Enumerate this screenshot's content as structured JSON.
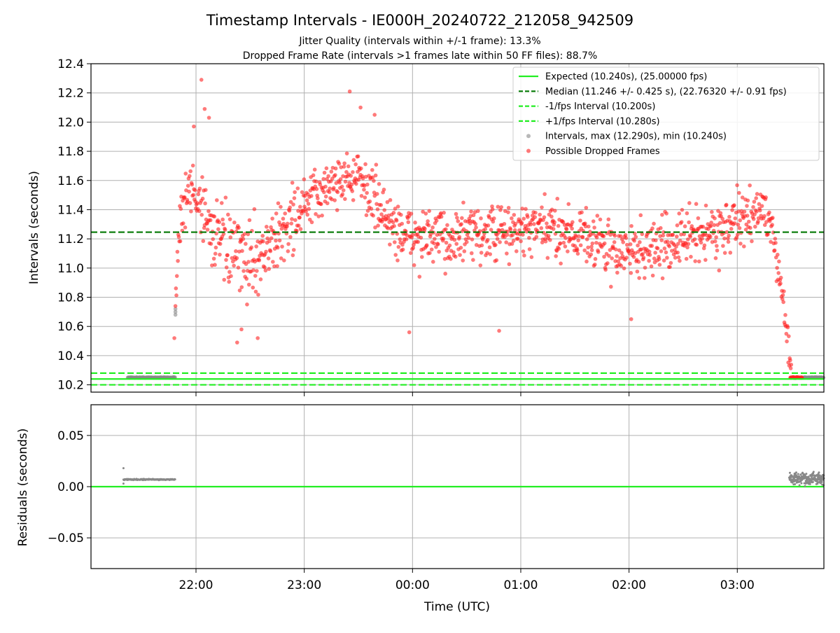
{
  "title": "Timestamp Intervals - IE000H_20240722_212058_942509",
  "subtitle_1": "Jitter Quality (intervals within +/-1 frame): 13.3%",
  "subtitle_2": "Dropped Frame Rate (intervals >1 frames late within 50 FF files): 88.7%",
  "colors": {
    "expected": "#22ee22",
    "median": "#007700",
    "fps_interval": "#22ee22",
    "intervals": "#888888",
    "dropped": "#ff2222",
    "grid": "#b0b0b0"
  },
  "chart_data": [
    {
      "type": "scatter",
      "ylabel": "Intervals (seconds)",
      "ylim": [
        10.15,
        12.4
      ],
      "xlim_hours": [
        21.03,
        27.8
      ],
      "y_ticks": [
        "10.2",
        "10.4",
        "10.6",
        "10.8",
        "11.0",
        "11.2",
        "11.4",
        "11.6",
        "11.8",
        "12.0",
        "12.2",
        "12.4"
      ],
      "grid": true,
      "legend_position": "top-right",
      "hlines": [
        {
          "name": "Expected (10.240s), (25.00000 fps)",
          "y": 10.24,
          "style": "solid",
          "color": "#22ee22"
        },
        {
          "name": "Median (11.246 +/- 0.425 s), (22.76320 +/- 0.91 fps)",
          "y": 11.246,
          "style": "dashed",
          "color": "#007700"
        },
        {
          "name": "-1/fps Interval (10.200s)",
          "y": 10.2,
          "style": "dashed",
          "color": "#22ee22"
        },
        {
          "name": "+1/fps Interval (10.280s)",
          "y": 10.28,
          "style": "dashed",
          "color": "#22ee22"
        }
      ],
      "scatter_series": [
        {
          "name": "Intervals, max (12.290s), min (10.240s)",
          "color": "#888888"
        },
        {
          "name": "Possible Dropped Frames",
          "color": "#ff2222"
        }
      ],
      "normal_segments": [
        {
          "x_start": 21.37,
          "x_end": 21.81,
          "y": 10.25
        },
        {
          "x_start": 27.58,
          "x_end": 27.8,
          "y": 10.25
        }
      ],
      "normal_points": [
        {
          "x": 21.81,
          "y": 10.72
        },
        {
          "x": 21.81,
          "y": 10.7
        },
        {
          "x": 21.81,
          "y": 10.68
        }
      ],
      "dropped_envelope": [
        {
          "x": 21.81,
          "median": 10.85,
          "spread": 0.2
        },
        {
          "x": 21.85,
          "median": 11.35,
          "spread": 0.3
        },
        {
          "x": 21.95,
          "median": 11.55,
          "spread": 0.3
        },
        {
          "x": 22.05,
          "median": 11.45,
          "spread": 0.3
        },
        {
          "x": 22.15,
          "median": 11.25,
          "spread": 0.3
        },
        {
          "x": 22.3,
          "median": 11.12,
          "spread": 0.32
        },
        {
          "x": 22.45,
          "median": 11.05,
          "spread": 0.35
        },
        {
          "x": 22.6,
          "median": 11.1,
          "spread": 0.3
        },
        {
          "x": 22.75,
          "median": 11.2,
          "spread": 0.28
        },
        {
          "x": 22.9,
          "median": 11.35,
          "spread": 0.3
        },
        {
          "x": 23.05,
          "median": 11.45,
          "spread": 0.25
        },
        {
          "x": 23.2,
          "median": 11.55,
          "spread": 0.22
        },
        {
          "x": 23.35,
          "median": 11.62,
          "spread": 0.22
        },
        {
          "x": 23.5,
          "median": 11.62,
          "spread": 0.22
        },
        {
          "x": 23.65,
          "median": 11.48,
          "spread": 0.25
        },
        {
          "x": 23.8,
          "median": 11.3,
          "spread": 0.25
        },
        {
          "x": 23.95,
          "median": 11.22,
          "spread": 0.25
        },
        {
          "x": 24.2,
          "median": 11.2,
          "spread": 0.25
        },
        {
          "x": 24.5,
          "median": 11.22,
          "spread": 0.25
        },
        {
          "x": 24.8,
          "median": 11.24,
          "spread": 0.25
        },
        {
          "x": 25.1,
          "median": 11.26,
          "spread": 0.25
        },
        {
          "x": 25.4,
          "median": 11.26,
          "spread": 0.25
        },
        {
          "x": 25.7,
          "median": 11.2,
          "spread": 0.25
        },
        {
          "x": 25.85,
          "median": 11.1,
          "spread": 0.25
        },
        {
          "x": 26.05,
          "median": 11.12,
          "spread": 0.25
        },
        {
          "x": 26.3,
          "median": 11.15,
          "spread": 0.25
        },
        {
          "x": 26.6,
          "median": 11.22,
          "spread": 0.25
        },
        {
          "x": 26.9,
          "median": 11.28,
          "spread": 0.25
        },
        {
          "x": 27.1,
          "median": 11.35,
          "spread": 0.22
        },
        {
          "x": 27.25,
          "median": 11.42,
          "spread": 0.2
        },
        {
          "x": 27.33,
          "median": 11.2,
          "spread": 0.15
        },
        {
          "x": 27.4,
          "median": 10.9,
          "spread": 0.15
        },
        {
          "x": 27.47,
          "median": 10.5,
          "spread": 0.15
        },
        {
          "x": 27.5,
          "median": 10.3,
          "spread": 0.06
        }
      ],
      "dropped_cluster": {
        "x_start": 27.49,
        "x_end": 27.6,
        "y": 10.25
      },
      "dropped_outliers": [
        {
          "x": 22.05,
          "y": 12.29
        },
        {
          "x": 22.08,
          "y": 12.09
        },
        {
          "x": 22.12,
          "y": 12.03
        },
        {
          "x": 23.42,
          "y": 12.21
        },
        {
          "x": 23.52,
          "y": 12.1
        },
        {
          "x": 23.65,
          "y": 12.05
        },
        {
          "x": 21.98,
          "y": 11.97
        },
        {
          "x": 22.38,
          "y": 10.49
        },
        {
          "x": 22.42,
          "y": 10.58
        },
        {
          "x": 22.57,
          "y": 10.52
        },
        {
          "x": 23.97,
          "y": 10.56
        },
        {
          "x": 24.8,
          "y": 10.57
        },
        {
          "x": 26.02,
          "y": 10.65
        },
        {
          "x": 21.8,
          "y": 10.52
        }
      ]
    },
    {
      "type": "scatter",
      "ylabel": "Residuals (seconds)",
      "xlabel": "Time (UTC)",
      "ylim": [
        -0.08,
        0.08
      ],
      "xlim_hours": [
        21.03,
        27.8
      ],
      "y_ticks": [
        "−0.05",
        "0.00",
        "0.05"
      ],
      "x_ticks": [
        "22:00",
        "23:00",
        "00:00",
        "01:00",
        "02:00",
        "03:00"
      ],
      "grid": true,
      "zero_line_color": "#22ee22",
      "residual_segments": [
        {
          "x_start": 21.33,
          "x_end": 21.81,
          "y": 0.007
        },
        {
          "x_start": 27.48,
          "x_end": 27.8,
          "y": 0.008,
          "spread": 0.008
        }
      ],
      "residual_points": [
        {
          "x": 21.33,
          "y": 0.018
        },
        {
          "x": 21.33,
          "y": 0.003
        }
      ]
    }
  ]
}
